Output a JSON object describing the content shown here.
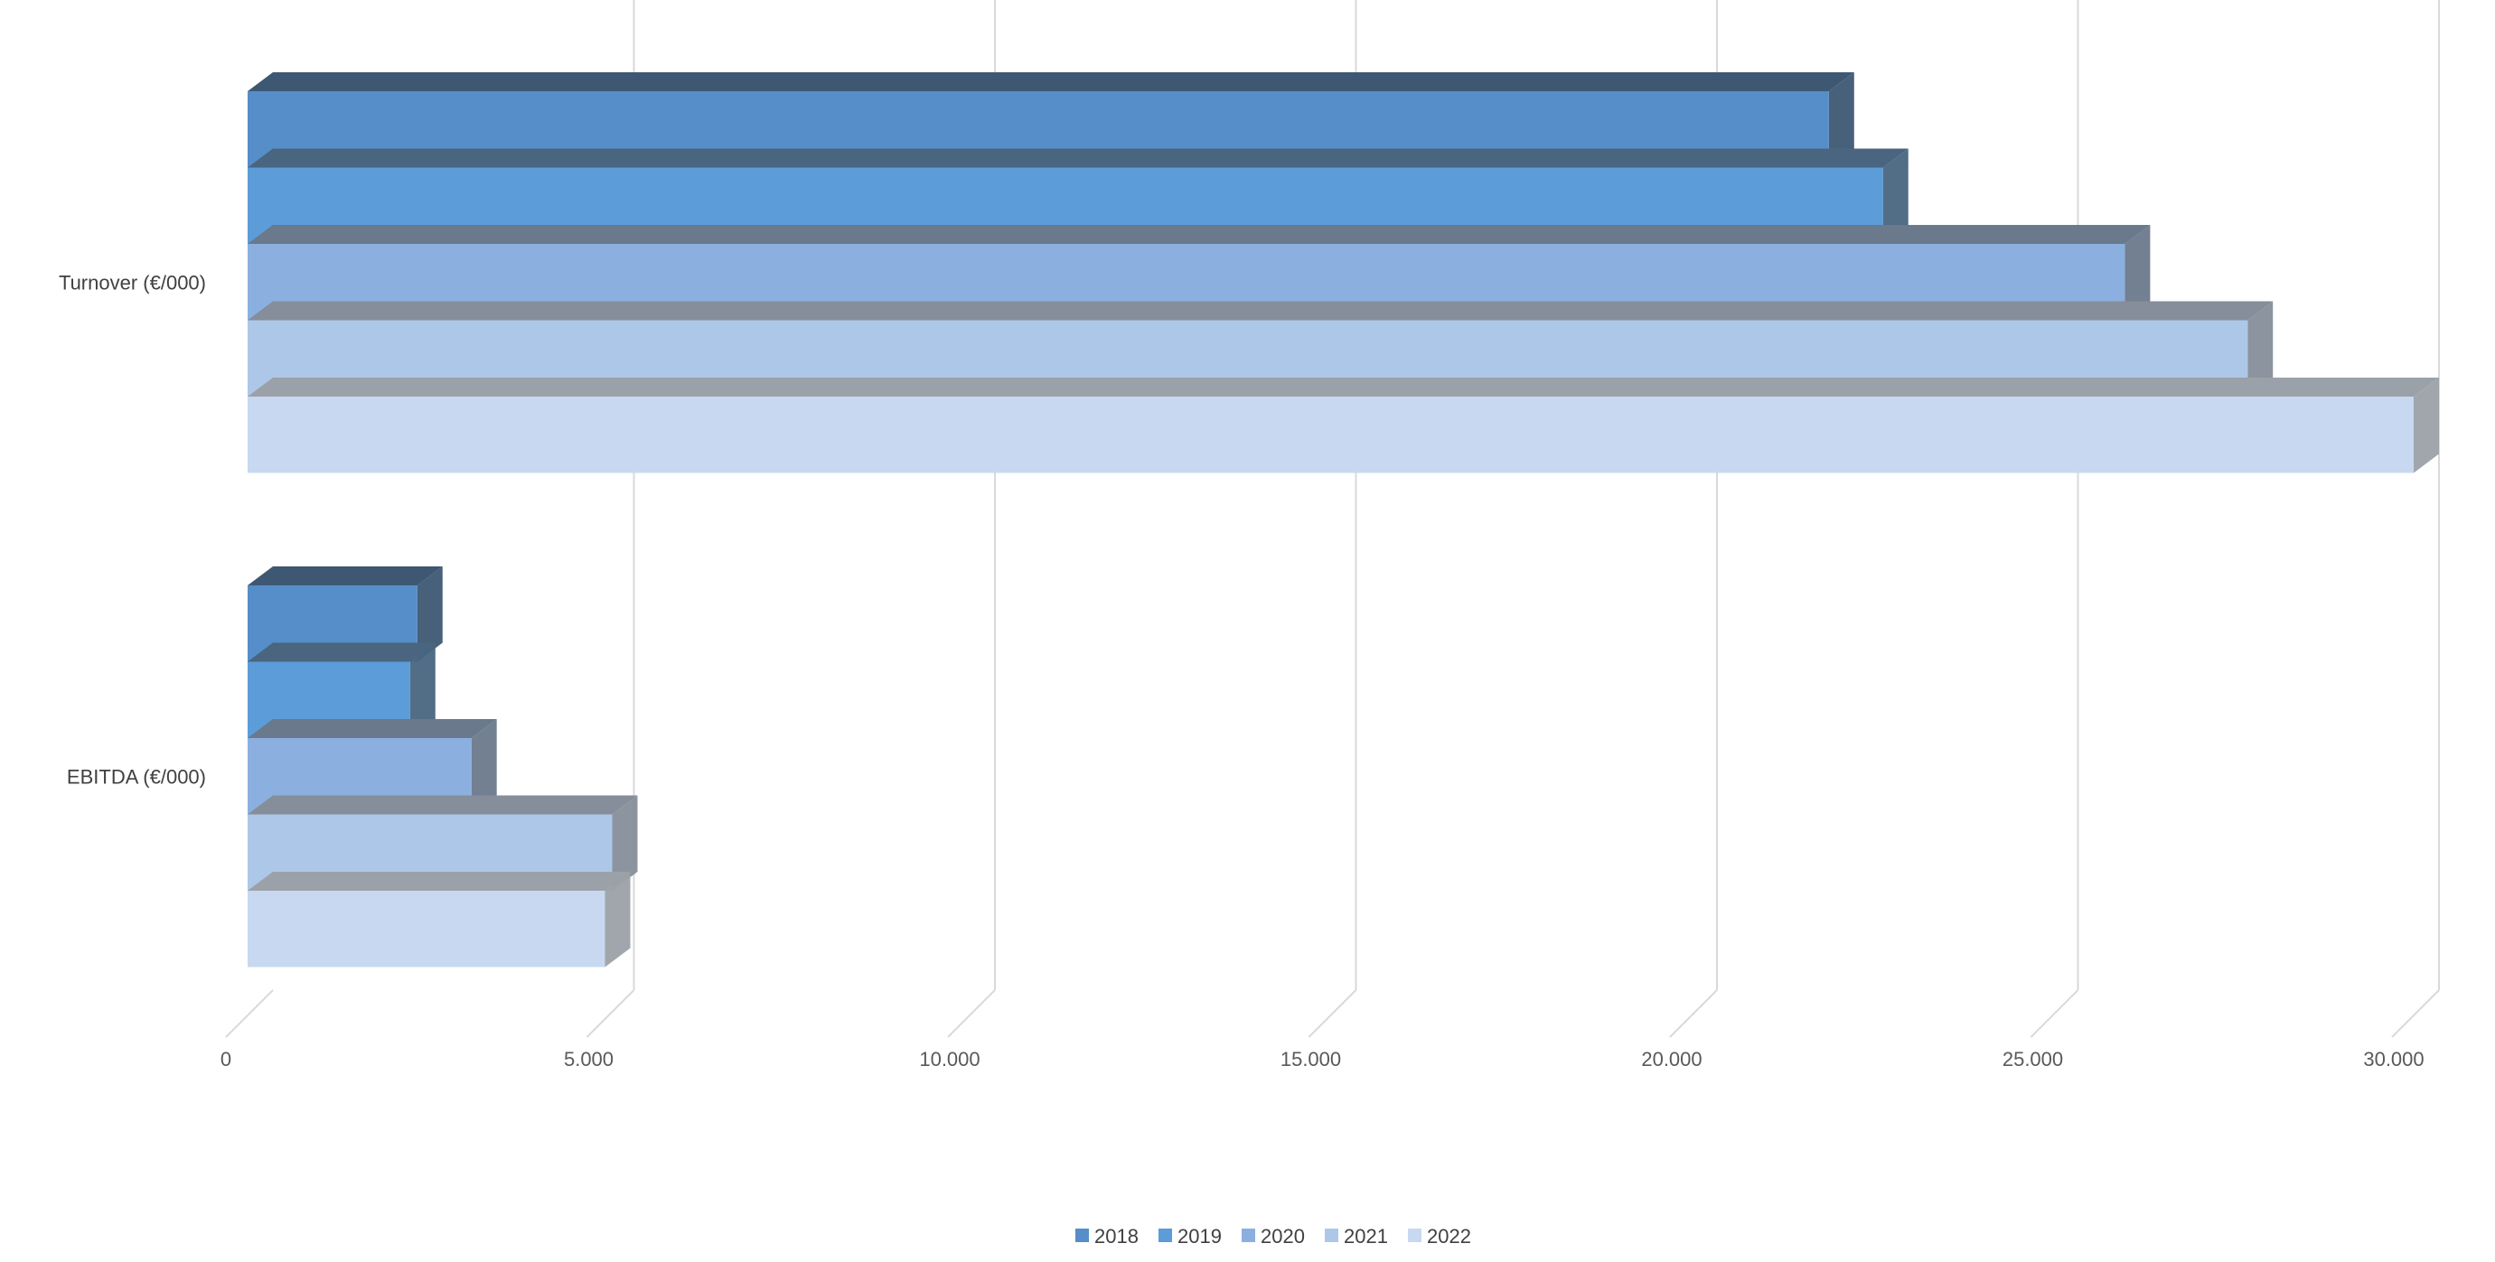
{
  "chart_data": {
    "type": "bar",
    "orientation": "horizontal",
    "style": "3d",
    "title": "",
    "xlabel": "",
    "ylabel": "",
    "categories": [
      "Turnover (€/000)",
      "EBITDA (€/000)"
    ],
    "xlim": [
      0,
      30000
    ],
    "ticks": [
      {
        "value": 0,
        "label": "0"
      },
      {
        "value": 5000,
        "label": "5.000"
      },
      {
        "value": 10000,
        "label": "10.000"
      },
      {
        "value": 15000,
        "label": "15.000"
      },
      {
        "value": 20000,
        "label": "20.000"
      },
      {
        "value": 25000,
        "label": "25.000"
      },
      {
        "value": 30000,
        "label": "30.000"
      }
    ],
    "grid": true,
    "legend_position": "bottom",
    "series": [
      {
        "name": "2018",
        "color": "#558ec8",
        "values": [
          21900,
          2350
        ]
      },
      {
        "name": "2019",
        "color": "#5c9cd8",
        "values": [
          22650,
          2250
        ]
      },
      {
        "name": "2020",
        "color": "#8bb0df",
        "values": [
          26000,
          3100
        ]
      },
      {
        "name": "2021",
        "color": "#adc7e8",
        "values": [
          27700,
          5050
        ]
      },
      {
        "name": "2022",
        "color": "#c7d8f0",
        "values": [
          30000,
          4950
        ]
      }
    ]
  }
}
